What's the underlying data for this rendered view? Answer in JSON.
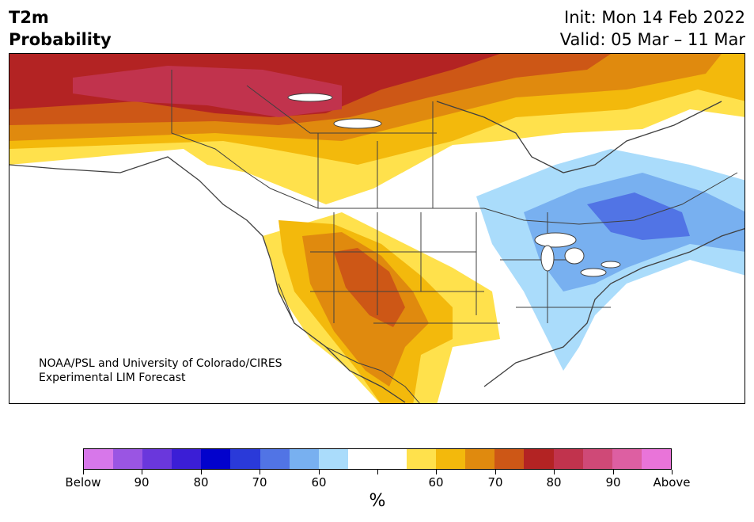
{
  "header": {
    "title_line1": "T2m",
    "title_line2": "Probability",
    "init": "Init: Mon 14 Feb 2022",
    "valid": "Valid: 05 Mar – 11 Mar"
  },
  "map": {
    "region": "North America",
    "credit_line1": "NOAA/PSL and University of Colorado/CIRES",
    "credit_line2": "Experimental LIM Forecast"
  },
  "colorbar": {
    "unit": "%",
    "colors": [
      "#d777ea",
      "#9a55e3",
      "#6a37dc",
      "#3b1ed6",
      "#0202cc",
      "#2a3ad9",
      "#5174e5",
      "#78b0f0",
      "#aadcfb",
      "#ffffff",
      "#ffffff",
      "#ffe14c",
      "#f3b90c",
      "#e08a0e",
      "#cd5716",
      "#b32323",
      "#c1334d",
      "#cf4977",
      "#dd5fa2",
      "#e974d9"
    ],
    "labels": [
      "Below",
      "90",
      "80",
      "70",
      "60",
      "",
      "60",
      "70",
      "80",
      "90",
      "Above"
    ]
  }
}
